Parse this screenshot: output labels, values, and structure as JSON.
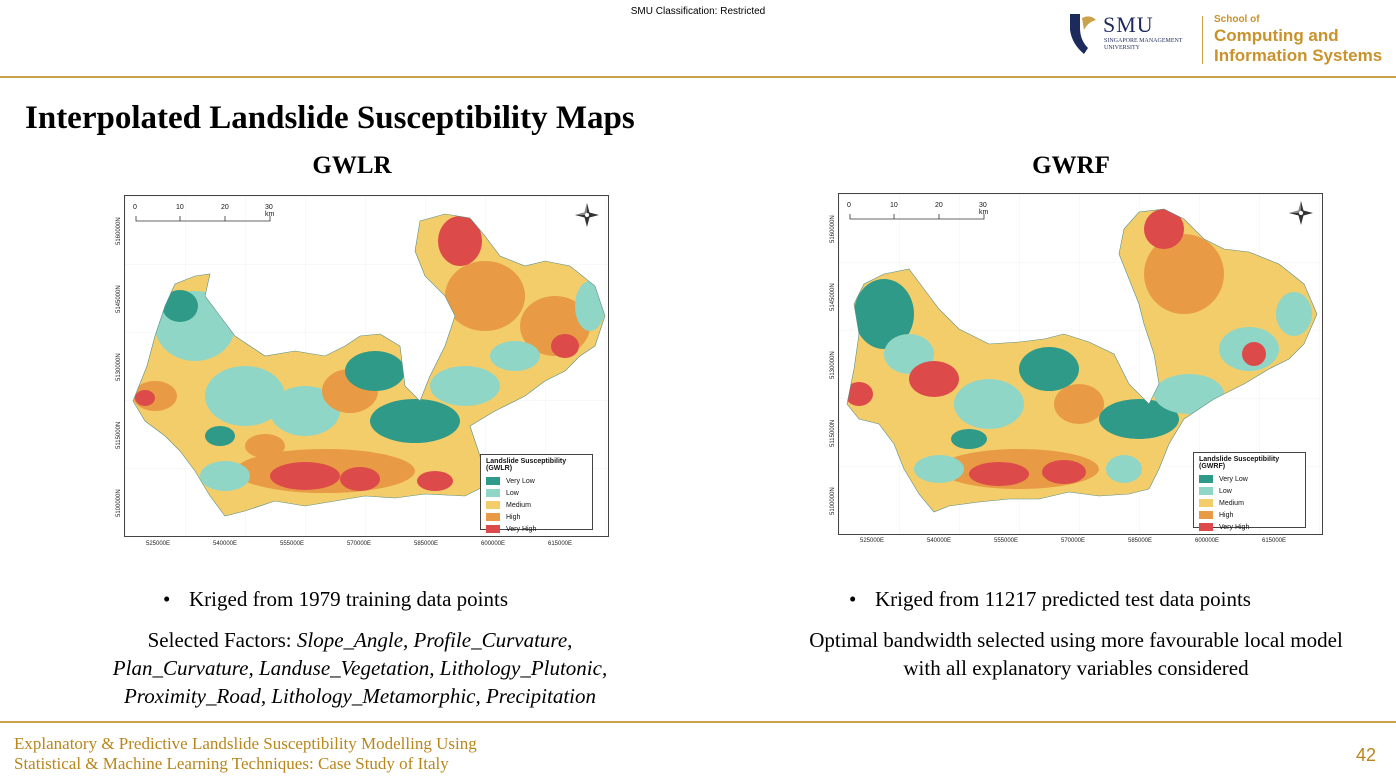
{
  "header": {
    "classification": "SMU Classification: Restricted",
    "logo_smu": "SMU",
    "logo_smu_sub": "SINGAPORE MANAGEMENT UNIVERSITY",
    "school_line1": "School of",
    "school_line2": "Computing and",
    "school_line3": "Information Systems"
  },
  "slide": {
    "title": "Interpolated Landslide Susceptibility Maps"
  },
  "left": {
    "heading": "GWLR",
    "map": {
      "scale_labels": [
        "0",
        "10",
        "20",
        "30 km"
      ],
      "y_ticks": [
        "5160000N",
        "5145000N",
        "5130000N",
        "5115000N",
        "5100000N"
      ],
      "x_ticks": [
        "525000E",
        "540000E",
        "555000E",
        "570000E",
        "585000E",
        "600000E",
        "615000E"
      ],
      "legend_title": "Landslide Susceptibility (GWLR)",
      "legend_items": [
        "Very Low",
        "Low",
        "Medium",
        "High",
        "Very High"
      ]
    },
    "bullet": "Kriged from 1979 training data points",
    "factors_prefix": "Selected Factors: ",
    "factors_line1": "Slope_Angle, Profile_Curvature,",
    "factors_line2": "Plan_Curvature, Landuse_Vegetation, Lithology_Plutonic,",
    "factors_line3": "Proximity_Road, Lithology_Metamorphic, Precipitation"
  },
  "right": {
    "heading": "GWRF",
    "map": {
      "scale_labels": [
        "0",
        "10",
        "20",
        "30 km"
      ],
      "y_ticks": [
        "5160000N",
        "5145000N",
        "5130000N",
        "5115000N",
        "5100000N"
      ],
      "x_ticks": [
        "525000E",
        "540000E",
        "555000E",
        "570000E",
        "585000E",
        "600000E",
        "615000E"
      ],
      "legend_title": "Landslide Susceptibility (GWRF)",
      "legend_items": [
        "Very Low",
        "Low",
        "Medium",
        "High",
        "Very High"
      ]
    },
    "bullet": "Kriged from 11217 predicted test data points",
    "note_line1": "Optimal bandwidth selected using more favourable local model",
    "note_line2": "with all explanatory variables considered"
  },
  "colors": {
    "accent": "#c9a24a",
    "very_low": "#2f9a87",
    "low": "#8fd6c6",
    "medium": "#f4cd6b",
    "high": "#e89a45",
    "very_high": "#dc4a4a"
  },
  "footer": {
    "line1": "Explanatory & Predictive Landslide Susceptibility Modelling Using",
    "line2": "Statistical & Machine Learning Techniques: Case Study of Italy",
    "page_number": "42"
  }
}
